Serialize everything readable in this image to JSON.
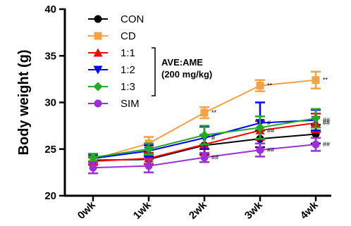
{
  "chart_data": {
    "type": "line",
    "ylabel": "Body weight (g)",
    "xlabel": "",
    "categories": [
      "0wk",
      "1wk",
      "2wk",
      "3wk",
      "4wk"
    ],
    "ylim": [
      20,
      40
    ],
    "yticks": [
      20,
      25,
      30,
      35,
      40
    ],
    "grid": false,
    "legend_position": "top-left",
    "legend_group_label": [
      "AVE:AME",
      "(200 mg/kg)"
    ],
    "series": [
      {
        "name": "CON",
        "color": "#000000",
        "marker": "circle",
        "values": [
          23.8,
          23.9,
          25.4,
          26.1,
          26.6
        ],
        "errors": [
          0.4,
          0.5,
          1.0,
          0.9,
          1.0
        ],
        "annotations": [
          "",
          "",
          "",
          "",
          ""
        ]
      },
      {
        "name": "CD",
        "color": "#f5a145",
        "marker": "square",
        "values": [
          23.9,
          25.6,
          28.9,
          31.8,
          32.4
        ],
        "errors": [
          0.4,
          0.7,
          0.6,
          0.6,
          0.9
        ],
        "annotations": [
          "",
          "",
          "**",
          "**",
          "**"
        ]
      },
      {
        "name": "1:1",
        "color": "#ff0000",
        "marker": "triangle-up",
        "values": [
          23.7,
          24.0,
          25.5,
          27.0,
          27.8
        ],
        "errors": [
          0.4,
          0.6,
          1.0,
          1.0,
          1.0
        ],
        "annotations": [
          "",
          "",
          "",
          "##",
          "##"
        ]
      },
      {
        "name": "1:2",
        "color": "#0000ff",
        "marker": "triangle-down",
        "values": [
          24.0,
          24.8,
          26.2,
          27.8,
          28.1
        ],
        "errors": [
          0.4,
          0.6,
          1.2,
          2.2,
          1.1
        ],
        "annotations": [
          "",
          "",
          "#",
          "#",
          "##"
        ]
      },
      {
        "name": "1:3",
        "color": "#22aa22",
        "marker": "diamond",
        "values": [
          24.1,
          25.0,
          26.5,
          27.3,
          28.3
        ],
        "errors": [
          0.4,
          0.6,
          1.0,
          1.2,
          1.0
        ],
        "annotations": [
          "",
          "",
          "",
          "",
          ""
        ]
      },
      {
        "name": "SIM",
        "color": "#9b30d9",
        "marker": "circle",
        "values": [
          23.0,
          23.2,
          24.1,
          24.9,
          25.5
        ],
        "errors": [
          0.6,
          0.7,
          0.5,
          0.7,
          0.7
        ],
        "annotations": [
          "",
          "",
          "##",
          "##",
          "##"
        ]
      }
    ]
  }
}
